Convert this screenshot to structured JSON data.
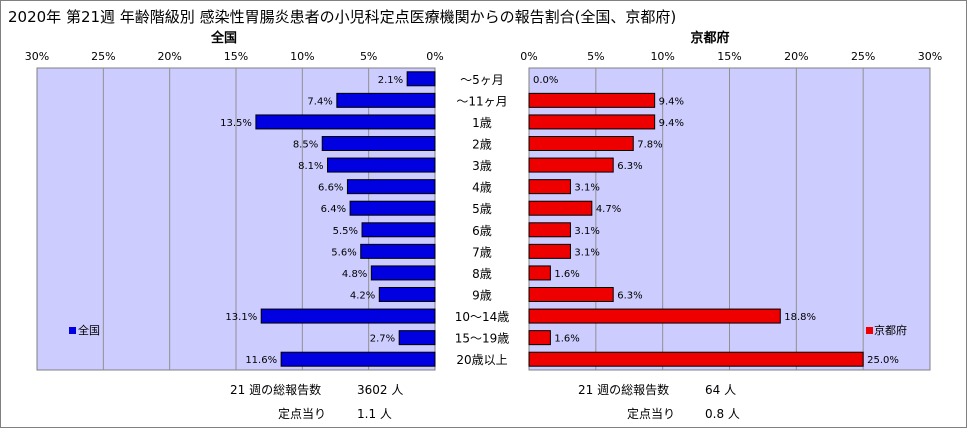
{
  "title": "2020年 第21週 年齢階級別 感染性胃腸炎患者の小児科定点医療機関からの報告割合(全国、京都府)",
  "colors": {
    "national": "#0000e0",
    "kyoto": "#ee0000",
    "plot_bg": "#ccccff"
  },
  "chart_data": {
    "type": "bar",
    "categories": [
      "～5ヶ月",
      "～11ヶ月",
      "1歳",
      "2歳",
      "3歳",
      "4歳",
      "5歳",
      "6歳",
      "7歳",
      "8歳",
      "9歳",
      "10～14歳",
      "15～19歳",
      "20歳以上"
    ],
    "xlim": [
      0,
      30
    ],
    "ticks": [
      0,
      5,
      10,
      15,
      20,
      25,
      30
    ],
    "tick_labels_left": [
      "0%",
      "5%",
      "10%",
      "15%",
      "20%",
      "25%",
      "30%"
    ],
    "tick_labels_right": [
      "0%",
      "5%",
      "10%",
      "15%",
      "20%",
      "25%",
      "30%"
    ],
    "grid": true,
    "series": [
      {
        "name": "全国",
        "panel_title": "全国",
        "legend_label": "全国",
        "values": [
          2.1,
          7.4,
          13.5,
          8.5,
          8.1,
          6.6,
          6.4,
          5.5,
          5.6,
          4.8,
          4.2,
          13.1,
          2.7,
          11.6
        ],
        "value_labels": [
          "2.1%",
          "7.4%",
          "13.5%",
          "8.5%",
          "8.1%",
          "6.6%",
          "6.4%",
          "5.5%",
          "5.6%",
          "4.8%",
          "4.2%",
          "13.1%",
          "2.7%",
          "11.6%"
        ]
      },
      {
        "name": "京都府",
        "panel_title": "京都府",
        "legend_label": "京都府",
        "values": [
          0.0,
          9.4,
          9.4,
          7.8,
          6.3,
          3.1,
          4.7,
          3.1,
          3.1,
          1.6,
          6.3,
          18.8,
          1.6,
          25.0
        ],
        "value_labels": [
          "0.0%",
          "9.4%",
          "9.4%",
          "7.8%",
          "6.3%",
          "3.1%",
          "4.7%",
          "3.1%",
          "3.1%",
          "1.6%",
          "6.3%",
          "18.8%",
          "1.6%",
          "25.0%"
        ]
      }
    ]
  },
  "footer": {
    "national": {
      "total_label": "21 週の総報告数",
      "total_value": "3602 人",
      "per_label": "定点当り",
      "per_value": "1.1 人"
    },
    "kyoto": {
      "total_label": "21 週の総報告数",
      "total_value": "64 人",
      "per_label": "定点当り",
      "per_value": "0.8 人"
    }
  }
}
